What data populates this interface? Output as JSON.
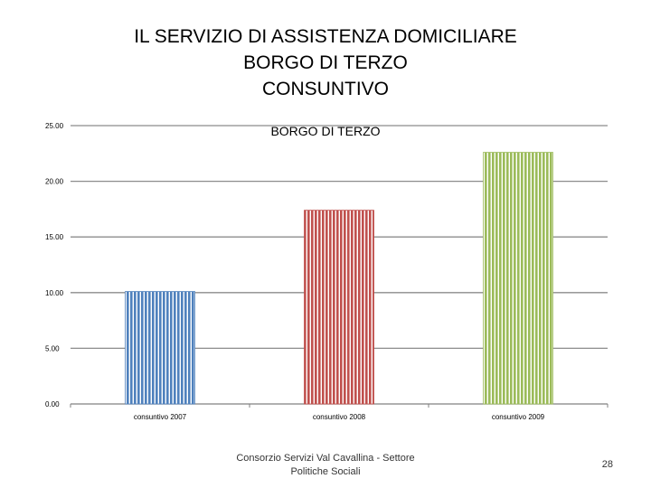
{
  "slide": {
    "title_lines": [
      "IL SERVIZIO DI ASSISTENZA DOMICILIARE",
      "BORGO DI TERZO",
      "CONSUNTIVO"
    ],
    "footer": "Consorzio Servizi Val Cavallina - Settore Politiche Sociali",
    "page_number": "28"
  },
  "chart_data": {
    "type": "bar",
    "title": "BORGO DI TERZO",
    "categories": [
      "consuntivo 2007",
      "consuntivo 2008",
      "consuntivo 2009"
    ],
    "values": [
      10.1,
      17.4,
      22.6
    ],
    "colors": [
      "#4f81bd",
      "#c0504d",
      "#9bbb59"
    ],
    "ylim": [
      0,
      25
    ],
    "yticks": [
      0,
      5,
      10,
      15,
      20,
      25
    ],
    "ytick_labels": [
      "0.00",
      "5.00",
      "10.00",
      "15.00",
      "20.00",
      "25.00"
    ],
    "grid": true,
    "legend": "none"
  }
}
